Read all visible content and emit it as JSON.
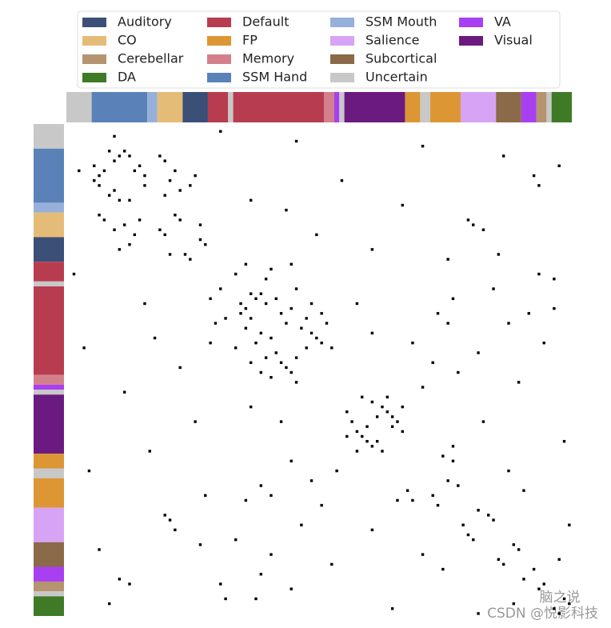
{
  "chart_data": {
    "type": "adjacency",
    "legend": {
      "columns": 4
    },
    "series": [
      {
        "name": "Auditory",
        "color": "#3b4f77"
      },
      {
        "name": "CO",
        "color": "#e5bc77"
      },
      {
        "name": "Cerebellar",
        "color": "#b5946f"
      },
      {
        "name": "DA",
        "color": "#3f7a26"
      },
      {
        "name": "Default",
        "color": "#b83c50"
      },
      {
        "name": "FP",
        "color": "#dc9634"
      },
      {
        "name": "Memory",
        "color": "#d4808c"
      },
      {
        "name": "SSM Hand",
        "color": "#5a82b9"
      },
      {
        "name": "SSM Mouth",
        "color": "#97b0d9"
      },
      {
        "name": "Salience",
        "color": "#d7a3f5"
      },
      {
        "name": "Subcortical",
        "color": "#8a6a48"
      },
      {
        "name": "Uncertain",
        "color": "#c8c8c8"
      },
      {
        "name": "VA",
        "color": "#a83ff0"
      },
      {
        "name": "Visual",
        "color": "#6b1a80"
      }
    ],
    "segments": [
      {
        "network": 11,
        "size": 5
      },
      {
        "network": 7,
        "size": 11
      },
      {
        "network": 8,
        "size": 2
      },
      {
        "network": 1,
        "size": 5
      },
      {
        "network": 0,
        "size": 5
      },
      {
        "network": 4,
        "size": 4
      },
      {
        "network": 11,
        "size": 1
      },
      {
        "network": 4,
        "size": 18
      },
      {
        "network": 6,
        "size": 2
      },
      {
        "network": 12,
        "size": 1
      },
      {
        "network": 11,
        "size": 1
      },
      {
        "network": 13,
        "size": 12
      },
      {
        "network": 5,
        "size": 3
      },
      {
        "network": 11,
        "size": 2
      },
      {
        "network": 5,
        "size": 6
      },
      {
        "network": 9,
        "size": 7
      },
      {
        "network": 10,
        "size": 5
      },
      {
        "network": 12,
        "size": 3
      },
      {
        "network": 2,
        "size": 2
      },
      {
        "network": 11,
        "size": 1
      },
      {
        "network": 3,
        "size": 4
      }
    ],
    "edges": [
      [
        5,
        8
      ],
      [
        6,
        12
      ],
      [
        7,
        9
      ],
      [
        8,
        14
      ],
      [
        9,
        13
      ],
      [
        10,
        15
      ],
      [
        5,
        11
      ],
      [
        12,
        15
      ],
      [
        6,
        10
      ],
      [
        7,
        19
      ],
      [
        9,
        21
      ],
      [
        11,
        20
      ],
      [
        13,
        22
      ],
      [
        6,
        18
      ],
      [
        14,
        19
      ],
      [
        18,
        21
      ],
      [
        19,
        22
      ],
      [
        23,
        26
      ],
      [
        24,
        27
      ],
      [
        10,
        25
      ],
      [
        12,
        24
      ],
      [
        20,
        26
      ],
      [
        28,
        35
      ],
      [
        29,
        40
      ],
      [
        30,
        33
      ],
      [
        34,
        36
      ],
      [
        34,
        38
      ],
      [
        35,
        37
      ],
      [
        35,
        41
      ],
      [
        36,
        39
      ],
      [
        37,
        44
      ],
      [
        38,
        42
      ],
      [
        39,
        47
      ],
      [
        40,
        43
      ],
      [
        41,
        46
      ],
      [
        42,
        48
      ],
      [
        43,
        49
      ],
      [
        44,
        50
      ],
      [
        45,
        47
      ],
      [
        33,
        45
      ],
      [
        36,
        48
      ],
      [
        38,
        50
      ],
      [
        31,
        39
      ],
      [
        28,
        44
      ],
      [
        40,
        51
      ],
      [
        45,
        52
      ],
      [
        55,
        58
      ],
      [
        56,
        60
      ],
      [
        57,
        62
      ],
      [
        58,
        63
      ],
      [
        59,
        61
      ],
      [
        60,
        65
      ],
      [
        61,
        64
      ],
      [
        62,
        66
      ],
      [
        55,
        63
      ],
      [
        57,
        66
      ],
      [
        59,
        64
      ],
      [
        36,
        57
      ],
      [
        42,
        60
      ],
      [
        67,
        74
      ],
      [
        68,
        76
      ],
      [
        72,
        75
      ],
      [
        73,
        77
      ],
      [
        38,
        73
      ],
      [
        40,
        75
      ],
      [
        44,
        68
      ],
      [
        35,
        76
      ],
      [
        78,
        81
      ],
      [
        79,
        83
      ],
      [
        80,
        84
      ],
      [
        20,
        80
      ],
      [
        21,
        82
      ],
      [
        19,
        79
      ],
      [
        46,
        81
      ],
      [
        60,
        82
      ],
      [
        85,
        88
      ],
      [
        86,
        89
      ],
      [
        6,
        86
      ],
      [
        40,
        87
      ],
      [
        70,
        87
      ],
      [
        90,
        92
      ],
      [
        38,
        91
      ],
      [
        74,
        90
      ],
      [
        93,
        94
      ],
      [
        30,
        93
      ],
      [
        44,
        94
      ],
      [
        12,
        93
      ],
      [
        96,
        98
      ],
      [
        97,
        99
      ],
      [
        8,
        97
      ],
      [
        37,
        96
      ],
      [
        64,
        98
      ],
      [
        81,
        99
      ],
      [
        88,
        97
      ],
      [
        2,
        9
      ],
      [
        1,
        30
      ],
      [
        3,
        45
      ],
      [
        4,
        70
      ],
      [
        15,
        36
      ],
      [
        17,
        43
      ],
      [
        22,
        49
      ],
      [
        25,
        60
      ],
      [
        27,
        75
      ],
      [
        11,
        54
      ],
      [
        16,
        66
      ],
      [
        26,
        85
      ],
      [
        48,
        72
      ],
      [
        50,
        77
      ],
      [
        53,
        70
      ],
      [
        33,
        84
      ],
      [
        65,
        76
      ],
      [
        52,
        89
      ],
      [
        31,
        96
      ],
      [
        10,
        92
      ]
    ],
    "watermark": [
      "脑之说",
      "CSDN @悦影科技"
    ]
  }
}
